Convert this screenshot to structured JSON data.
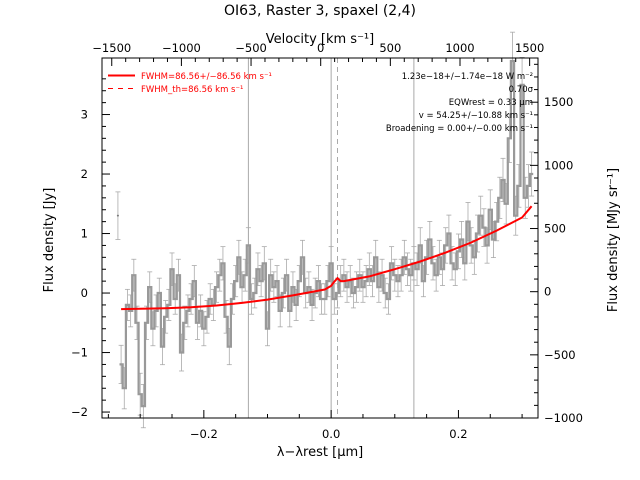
{
  "chart_data": {
    "type": "line",
    "title": "OI63, Raster 3, spaxel (2,4)",
    "xlabel": "λ−λrest [μm]",
    "ylabel": "Flux density [Jy]",
    "xlabel_top": "Velocity [km s⁻¹]",
    "ylabel_right": "Flux density [MJy sr⁻¹]",
    "xlim": [
      -0.36,
      0.325
    ],
    "ylim": [
      -2.1,
      3.95
    ],
    "ylim_right": [
      -1000,
      1850
    ],
    "x_ticks": [
      -0.2,
      0.0,
      0.2
    ],
    "x_tick_labels": [
      "−0.2",
      "0.0",
      "0.2"
    ],
    "y_ticks": [
      -2,
      -1,
      0,
      1,
      2,
      3
    ],
    "y_tick_labels": [
      "−2",
      "−1",
      "0",
      "1",
      "2",
      "3"
    ],
    "top_ticks": [
      -1500,
      -1000,
      -500,
      0,
      500,
      1000,
      1500
    ],
    "top_tick_labels": [
      "−1500",
      "−1000",
      "−500",
      "0",
      "500",
      "1000",
      "1500"
    ],
    "right_ticks": [
      -1000,
      -500,
      0,
      500,
      1000,
      1500
    ],
    "right_tick_labels": [
      "−1000",
      "−500",
      "0",
      "500",
      "1000",
      "1500"
    ],
    "vertical_lines": [
      {
        "x": -0.13,
        "style": "solid",
        "color": "#aaaaaa"
      },
      {
        "x": 0.0,
        "style": "solid",
        "color": "#aaaaaa"
      },
      {
        "x": 0.01,
        "style": "dashed",
        "color": "#aaaaaa"
      },
      {
        "x": 0.13,
        "style": "solid",
        "color": "#aaaaaa"
      }
    ],
    "legend": {
      "position": "top-left",
      "entries": [
        {
          "label": "FWHM=86.56+/−86.56 km s⁻¹",
          "style": "solid",
          "color": "#ff0000"
        },
        {
          "label": "FWHM_th=86.56 km s⁻¹",
          "style": "dashed",
          "color": "#ff0000"
        }
      ]
    },
    "annotations": [
      "1.23e−18+/−1.74e−18 W m⁻²",
      "0.70σ",
      "EQWrest = 0.33 μm",
      "v = 54.25+/−10.88 km s⁻¹",
      "Broadening = 0.00+/−0.00 km s⁻¹"
    ],
    "series": [
      {
        "name": "FWHM=86.56+/−86.56 km s⁻¹",
        "kind": "fit",
        "color": "#ff0000",
        "x": [
          -0.33,
          -0.3,
          -0.26,
          -0.22,
          -0.18,
          -0.14,
          -0.1,
          -0.06,
          -0.03,
          -0.01,
          0.0,
          0.005,
          0.01,
          0.015,
          0.02,
          0.06,
          0.1,
          0.14,
          0.18,
          0.22,
          0.26,
          0.3,
          0.315
        ],
        "y": [
          -0.27,
          -0.265,
          -0.255,
          -0.24,
          -0.21,
          -0.165,
          -0.11,
          -0.04,
          0.02,
          0.06,
          0.12,
          0.19,
          0.25,
          0.2,
          0.2,
          0.28,
          0.4,
          0.53,
          0.68,
          0.85,
          1.05,
          1.27,
          1.46
        ]
      },
      {
        "name": "data",
        "kind": "histogram",
        "color": "#999999",
        "error_color": "#aaaaaa",
        "x": [
          -0.33,
          -0.325,
          -0.32,
          -0.315,
          -0.31,
          -0.305,
          -0.3,
          -0.295,
          -0.29,
          -0.285,
          -0.28,
          -0.275,
          -0.27,
          -0.265,
          -0.26,
          -0.255,
          -0.25,
          -0.245,
          -0.24,
          -0.235,
          -0.23,
          -0.225,
          -0.22,
          -0.215,
          -0.21,
          -0.205,
          -0.2,
          -0.195,
          -0.19,
          -0.185,
          -0.18,
          -0.175,
          -0.17,
          -0.165,
          -0.16,
          -0.155,
          -0.15,
          -0.145,
          -0.14,
          -0.135,
          -0.13,
          -0.125,
          -0.12,
          -0.115,
          -0.11,
          -0.105,
          -0.1,
          -0.095,
          -0.09,
          -0.085,
          -0.08,
          -0.075,
          -0.07,
          -0.065,
          -0.06,
          -0.055,
          -0.05,
          -0.045,
          -0.04,
          -0.035,
          -0.03,
          -0.025,
          -0.02,
          -0.015,
          -0.01,
          -0.005,
          0.0,
          0.005,
          0.01,
          0.015,
          0.02,
          0.025,
          0.03,
          0.035,
          0.04,
          0.045,
          0.05,
          0.055,
          0.06,
          0.065,
          0.07,
          0.075,
          0.08,
          0.085,
          0.09,
          0.095,
          0.1,
          0.105,
          0.11,
          0.115,
          0.12,
          0.125,
          0.13,
          0.135,
          0.14,
          0.145,
          0.15,
          0.155,
          0.16,
          0.165,
          0.17,
          0.175,
          0.18,
          0.185,
          0.19,
          0.195,
          0.2,
          0.205,
          0.21,
          0.215,
          0.22,
          0.225,
          0.23,
          0.235,
          0.24,
          0.245,
          0.25,
          0.255,
          0.26,
          0.265,
          0.27,
          0.275,
          0.28,
          0.285,
          0.29,
          0.295,
          0.3,
          0.305,
          0.31,
          0.315
        ],
        "y": [
          -1.2,
          -1.6,
          -0.2,
          -0.3,
          0.3,
          -0.5,
          -1.7,
          -1.9,
          -0.5,
          0.1,
          -0.6,
          -0.3,
          0.0,
          -0.9,
          -0.4,
          -0.2,
          0.4,
          -0.1,
          0.3,
          -1.0,
          -0.5,
          -0.3,
          -0.1,
          0.2,
          -0.5,
          -0.3,
          -0.6,
          -0.4,
          -0.1,
          -0.2,
          0.1,
          0.3,
          0.5,
          -0.4,
          -0.9,
          -0.1,
          0.2,
          0.6,
          0.1,
          0.3,
          0.8,
          -0.1,
          0.0,
          0.4,
          0.2,
          0.5,
          -0.6,
          0.3,
          0.1,
          0.2,
          -0.3,
          0.0,
          0.3,
          -0.3,
          0.1,
          -0.2,
          0.2,
          0.6,
          0.0,
          0.1,
          -0.2,
          0.0,
          0.2,
          -0.1,
          -0.1,
          0.2,
          0.5,
          -0.1,
          0.0,
          0.2,
          0.3,
          0.1,
          0.2,
          0.0,
          0.1,
          0.3,
          0.1,
          0.2,
          0.4,
          0.2,
          0.6,
          0.1,
          0.3,
          0.0,
          -0.1,
          0.5,
          0.3,
          0.2,
          0.3,
          0.6,
          0.4,
          0.3,
          0.5,
          0.4,
          0.8,
          0.2,
          0.6,
          0.9,
          0.5,
          0.3,
          0.6,
          0.4,
          0.8,
          1.0,
          0.5,
          0.4,
          0.7,
          0.9,
          0.5,
          1.2,
          0.8,
          0.6,
          1.0,
          1.3,
          1.1,
          0.8,
          1.4,
          0.9,
          1.2,
          1.6,
          1.9,
          1.5,
          2.6,
          3.9,
          1.3,
          1.8,
          3.5,
          1.6,
          1.8,
          2.0
        ]
      }
    ],
    "outlier_point": {
      "x": -0.335,
      "y": 1.3,
      "err": 0.4
    }
  }
}
